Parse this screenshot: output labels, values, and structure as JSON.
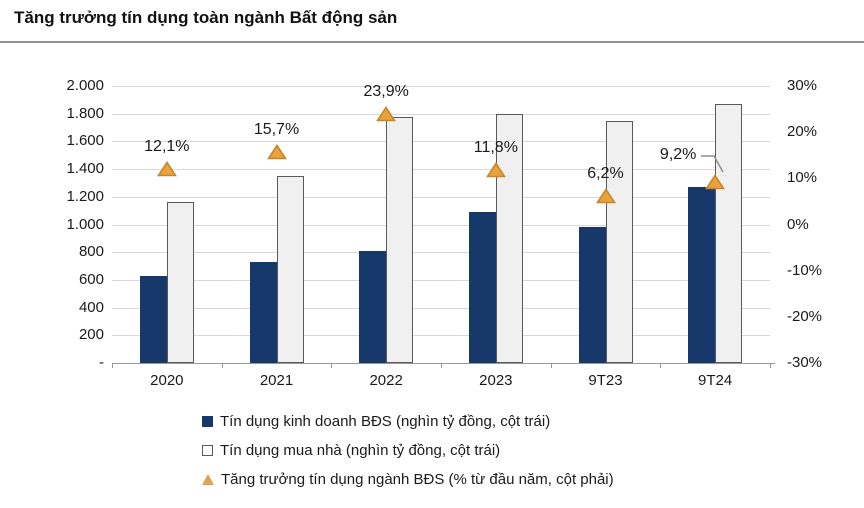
{
  "title": "Tăng trưởng tín dụng toàn ngành Bất động sản",
  "colors": {
    "bar_dark": "#17386b",
    "bar_light_fill": "#f0f0f0",
    "bar_light_border": "#595959",
    "marker_fill": "#e9a23c",
    "marker_border": "#c8862b",
    "gridline": "#d9d9d9",
    "axis_line": "#999999"
  },
  "chart_data": {
    "type": "bar",
    "subtype": "clustered-bars-with-line-markers",
    "categories": [
      "2020",
      "2021",
      "2022",
      "2023",
      "9T23",
      "9T24"
    ],
    "series": [
      {
        "name": "Tín dụng kinh doanh BĐS (nghìn tỷ đồng, cột trái)",
        "kind": "bar",
        "axis": "left",
        "color": "#17386b",
        "values": [
          630,
          730,
          810,
          1090,
          985,
          1270
        ]
      },
      {
        "name": "Tín dụng mua nhà (nghìn tỷ đồng, cột trái)",
        "kind": "bar",
        "axis": "left",
        "color": "#f0f0f0",
        "border": "#595959",
        "values": [
          1160,
          1350,
          1775,
          1800,
          1750,
          1870
        ]
      },
      {
        "name": "Tăng trưởng tín dụng ngành BĐS (% từ đầu năm, cột phải)",
        "kind": "triangle-marker",
        "axis": "right",
        "color": "#e9a23c",
        "border": "#c8862b",
        "values": [
          12.1,
          15.7,
          23.9,
          11.8,
          6.2,
          9.2
        ],
        "labels": [
          "12,1%",
          "15,7%",
          "23,9%",
          "11,8%",
          "6,2%",
          "9,2%"
        ],
        "label_layout": [
          {
            "dx": 0,
            "dy": 0,
            "leader": false
          },
          {
            "dx": 0,
            "dy": 0,
            "leader": false
          },
          {
            "dx": 0,
            "dy": 0,
            "leader": false
          },
          {
            "dx": 0,
            "dy": 0,
            "leader": false
          },
          {
            "dx": 0,
            "dy": 0,
            "leader": false
          },
          {
            "dx": -37,
            "dy": -5,
            "leader": true
          }
        ]
      }
    ],
    "left_axis": {
      "ticks": [
        "2.000",
        "1.800",
        "1.600",
        "1.400",
        "1.200",
        "1.000",
        "800",
        "600",
        "400",
        "200",
        "-"
      ],
      "min": 0,
      "max": 2000
    },
    "right_axis": {
      "ticks": [
        "30%",
        "20%",
        "10%",
        "0%",
        "-10%",
        "-20%",
        "-30%"
      ],
      "min": -30,
      "max": 30
    },
    "grid": true,
    "legend_position": "bottom"
  },
  "legend": {
    "items": [
      {
        "label": "Tín dụng kinh doanh BĐS (nghìn tỷ đồng, cột trái)"
      },
      {
        "label": "Tín dụng mua nhà (nghìn tỷ đồng, cột trái)"
      },
      {
        "label": "Tăng trưởng tín dụng ngành BĐS (% từ đầu năm, cột phải)"
      }
    ]
  }
}
